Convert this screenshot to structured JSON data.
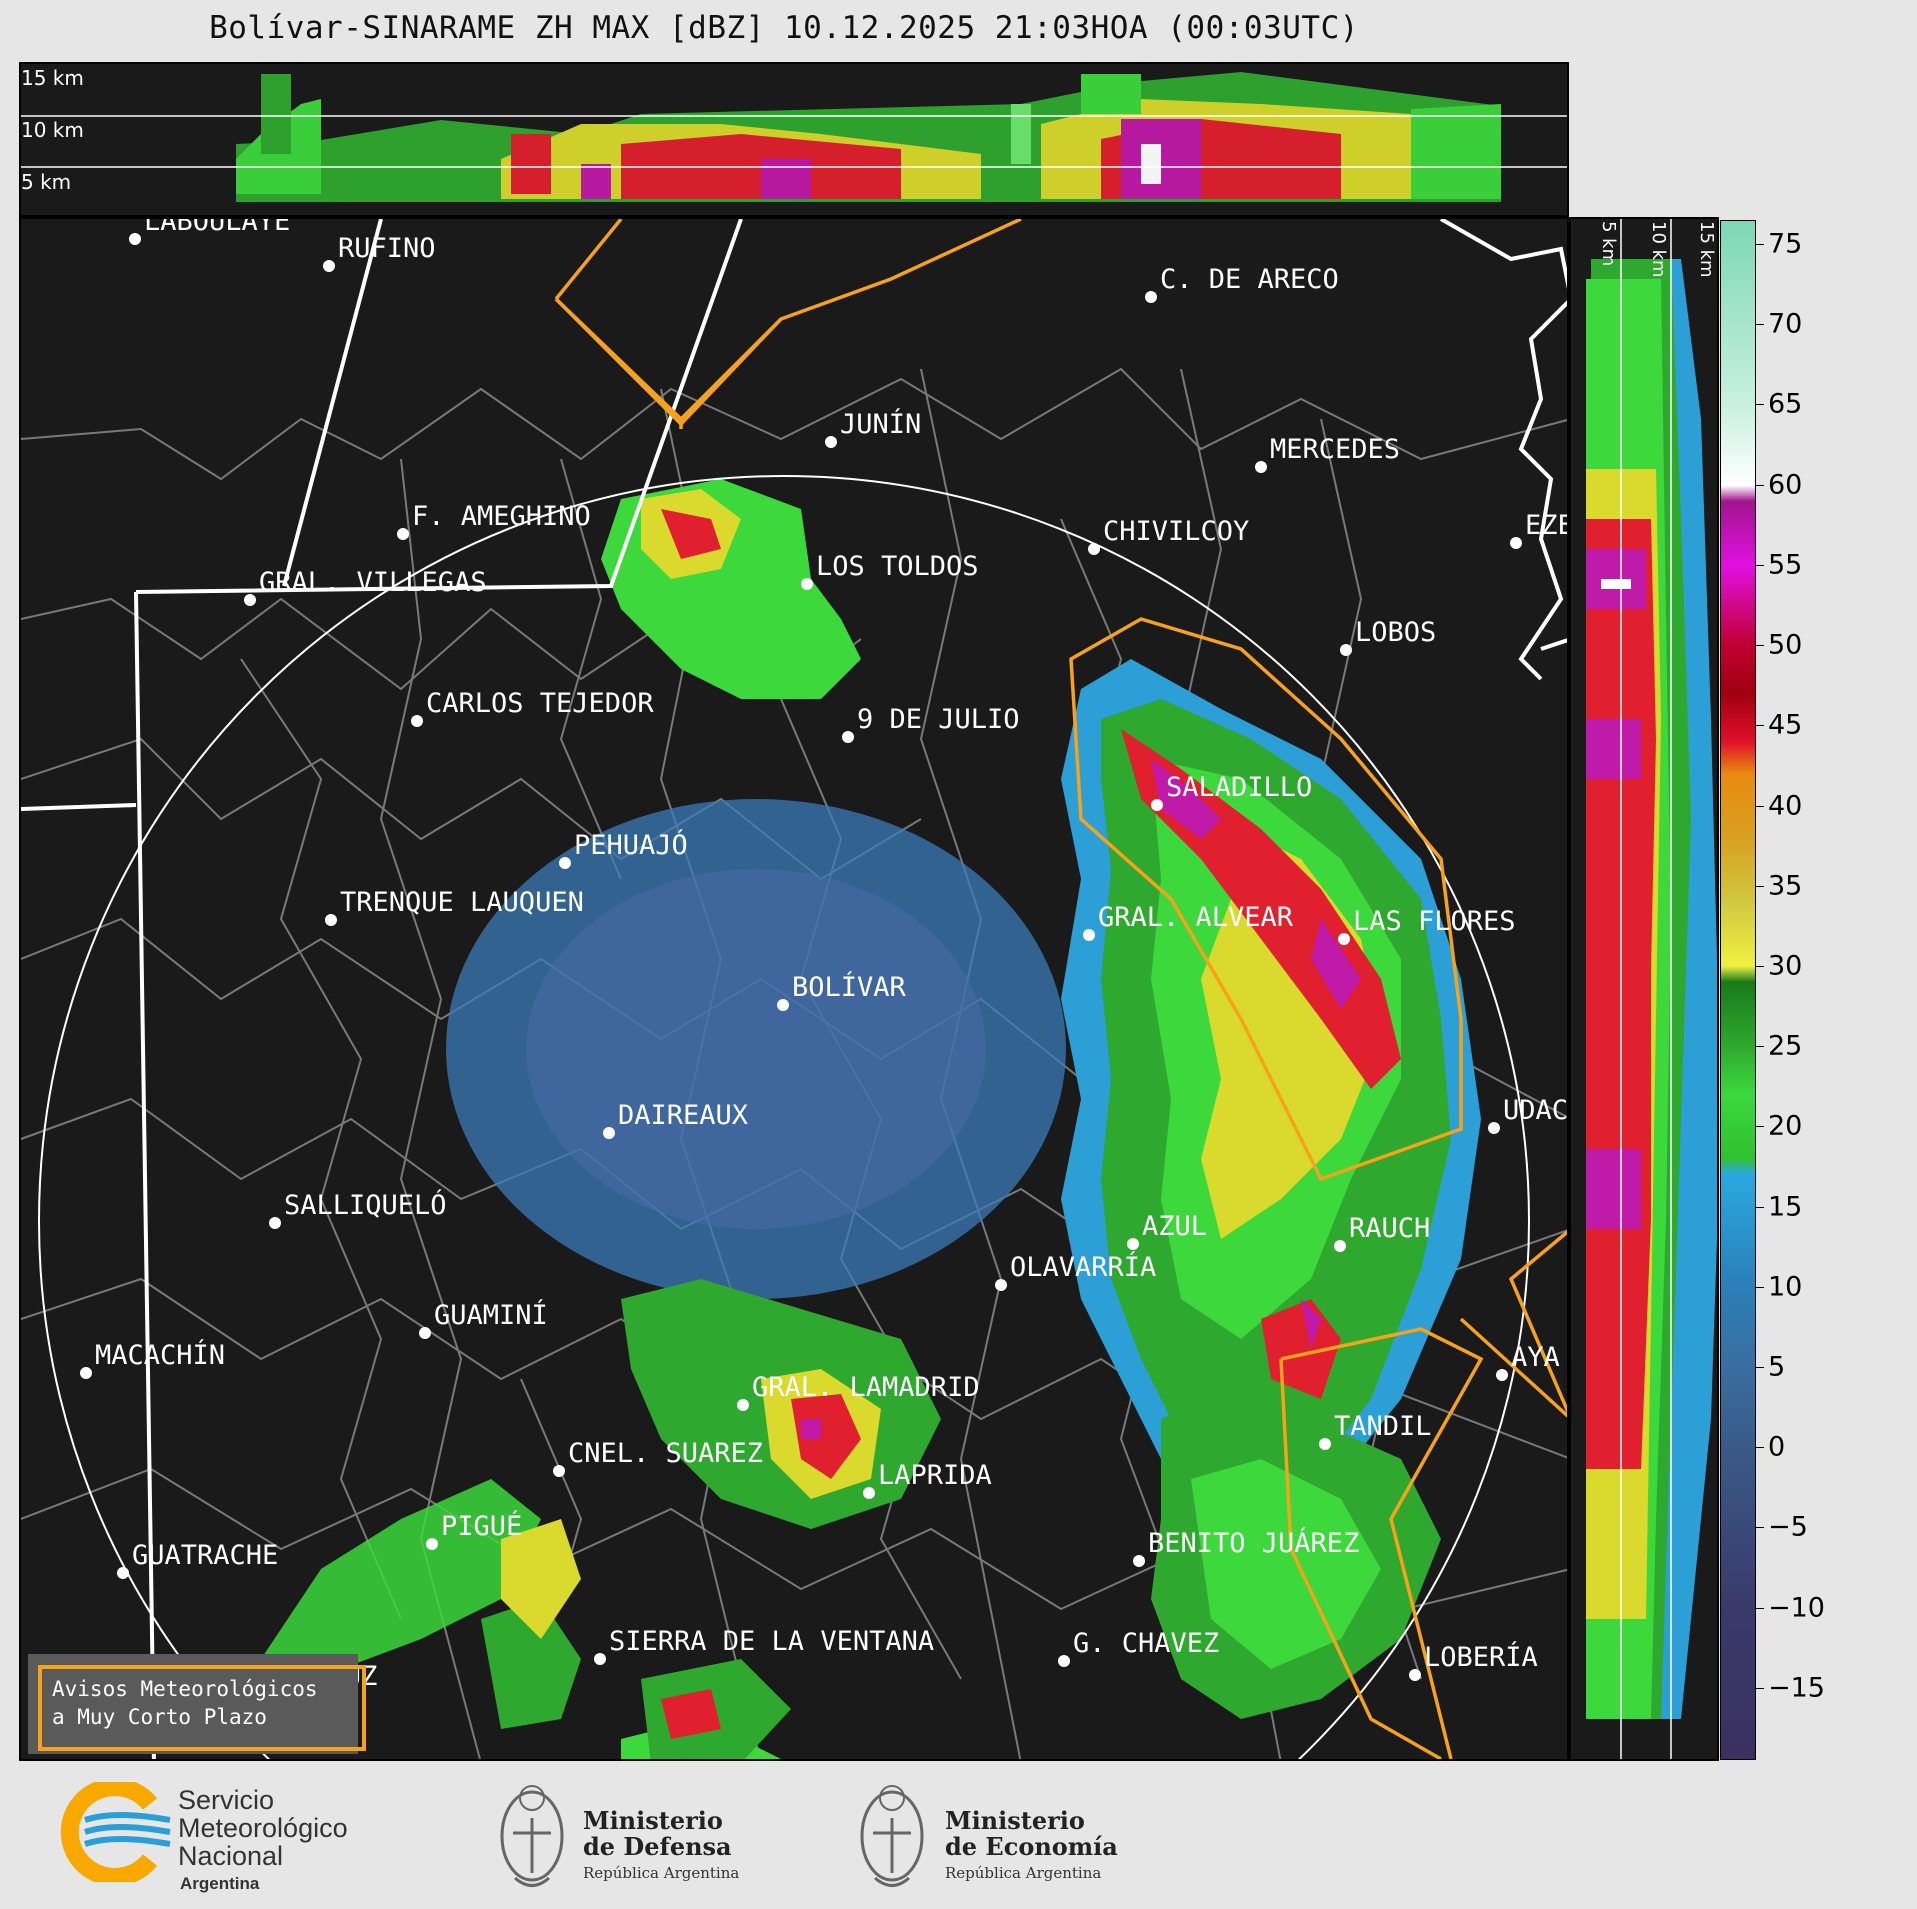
{
  "title": "Bolívar-SINARAME ZH MAX [dBZ] 10.12.2025 21:03HOA (00:03UTC)",
  "top_profile": {
    "levels": [
      "15 km",
      "10 km",
      "5 km"
    ]
  },
  "side_profile": {
    "levels": [
      "5 km",
      "10 km",
      "15 km"
    ]
  },
  "colorbar": {
    "unit": "dBZ",
    "ticks": [
      "75",
      "70",
      "65",
      "60",
      "55",
      "50",
      "45",
      "40",
      "35",
      "30",
      "25",
      "20",
      "15",
      "10",
      "5",
      "0",
      "−5",
      "−10",
      "−15"
    ]
  },
  "cities": [
    {
      "name": "LABOULAYE"
    },
    {
      "name": "RUFINO"
    },
    {
      "name": "C. DE ARECO"
    },
    {
      "name": "JUNÍN"
    },
    {
      "name": "MERCEDES"
    },
    {
      "name": "F. AMEGHINO"
    },
    {
      "name": "CHIVILCOY"
    },
    {
      "name": "EZE"
    },
    {
      "name": "LOS TOLDOS"
    },
    {
      "name": "GRAL. VILLEGAS"
    },
    {
      "name": "LOBOS"
    },
    {
      "name": "CARLOS TEJEDOR"
    },
    {
      "name": "9 DE JULIO"
    },
    {
      "name": "SALADILLO"
    },
    {
      "name": "PEHUAJÓ"
    },
    {
      "name": "TRENQUE LAUQUEN"
    },
    {
      "name": "GRAL. ALVEAR"
    },
    {
      "name": "LAS FLORES"
    },
    {
      "name": "BOLÍVAR"
    },
    {
      "name": "DAIREAUX"
    },
    {
      "name": "UDAC"
    },
    {
      "name": "SALLIQUELÓ"
    },
    {
      "name": "AZUL"
    },
    {
      "name": "RAUCH"
    },
    {
      "name": "OLAVARRÍA"
    },
    {
      "name": "GUAMINÍ"
    },
    {
      "name": "MACACHÍN"
    },
    {
      "name": "AYA"
    },
    {
      "name": "GRAL. LAMADRID"
    },
    {
      "name": "TANDIL"
    },
    {
      "name": "CNEL. SUAREZ"
    },
    {
      "name": "LAPRIDA"
    },
    {
      "name": "PIGUÉ"
    },
    {
      "name": "GUATRACHE"
    },
    {
      "name": "BENITO JUÁREZ"
    },
    {
      "name": "G. CHAVEZ"
    },
    {
      "name": "JACINTO ARAUZ"
    },
    {
      "name": "SIERRA DE LA VENTANA"
    },
    {
      "name": "LOBERÍA"
    }
  ],
  "warning_legend": {
    "line1": "Avisos Meteorológicos",
    "line2": "a Muy Corto Plazo",
    "color": "#f7a21b"
  },
  "logos": {
    "smn": {
      "line1": "Servicio",
      "line2": "Meteorológico",
      "line3": "Nacional",
      "line4": "Argentina"
    },
    "defensa": {
      "line1": "Ministerio",
      "line2": "de Defensa",
      "line3": "República Argentina"
    },
    "economia": {
      "line1": "Ministerio",
      "line2": "de Economía",
      "line3": "República Argentina"
    }
  }
}
